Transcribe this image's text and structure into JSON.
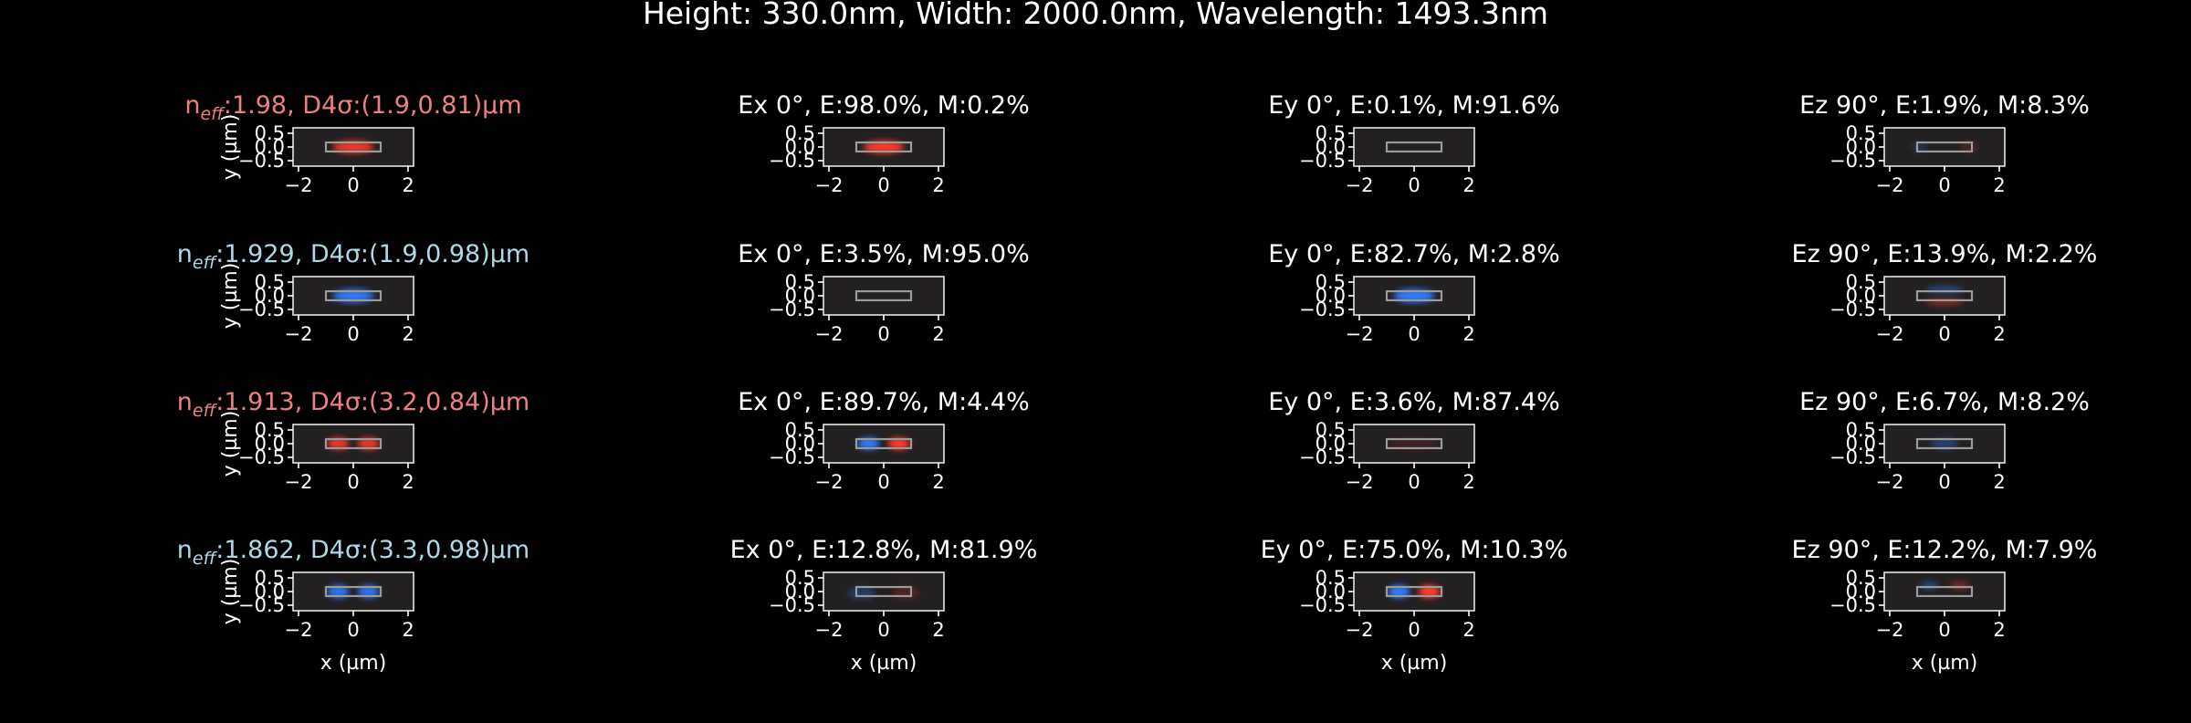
{
  "figure_title": "Height: 330.0nm, Width: 2000.0nm, Wavelength: 1493.3nm",
  "colors": {
    "background": "#000000",
    "panel_bg": "#232021",
    "te_label": "#f08080",
    "tm_label": "#add8e6",
    "field_pos": "#ff3a2a",
    "field_neg": "#2f7cff"
  },
  "chart_data": {
    "type": "heatmap",
    "title": "Height: 330.0nm, Width: 2000.0nm, Wavelength: 1493.3nm",
    "xlabel": "x (µm)",
    "ylabel": "y (µm)",
    "xlim": [
      -2.2,
      2.2
    ],
    "ylim": [
      -0.7,
      0.7
    ],
    "xticks": [
      "−2",
      "0",
      "2"
    ],
    "yticks": [
      "0.5",
      "0.0",
      "−0.5"
    ],
    "core": {
      "x": [
        -1.0,
        1.0
      ],
      "y": [
        -0.165,
        0.165
      ]
    },
    "rows": [
      {
        "mode_label": {
          "prefix": "n",
          "sub": "eff",
          "text": ":1.98, D4σ:(1.9,0.81)µm",
          "pol": "te"
        },
        "panels": [
          {
            "title": "",
            "blobs": [
              {
                "x": 0,
                "y": 0,
                "sx": 0.75,
                "sy": 0.22,
                "sign": 1,
                "amp": 0.95
              }
            ]
          },
          {
            "title": "Ex 0°, E:98.0%, M:0.2%",
            "blobs": [
              {
                "x": 0,
                "y": 0,
                "sx": 0.75,
                "sy": 0.22,
                "sign": 1,
                "amp": 1.0
              }
            ]
          },
          {
            "title": "Ey 0°, E:0.1%, M:91.6%",
            "blobs": []
          },
          {
            "title": "Ez 90°, E:1.9%, M:8.3%",
            "blobs": [
              {
                "x": -0.9,
                "y": 0,
                "sx": 0.3,
                "sy": 0.2,
                "sign": -1,
                "amp": 0.18
              },
              {
                "x": 0.9,
                "y": 0,
                "sx": 0.3,
                "sy": 0.2,
                "sign": 1,
                "amp": 0.18
              }
            ]
          }
        ]
      },
      {
        "mode_label": {
          "prefix": "n",
          "sub": "eff",
          "text": ":1.929, D4σ:(1.9,0.98)µm",
          "pol": "tm"
        },
        "panels": [
          {
            "title": "",
            "blobs": [
              {
                "x": 0,
                "y": 0,
                "sx": 0.75,
                "sy": 0.24,
                "sign": -1,
                "amp": 0.95
              }
            ]
          },
          {
            "title": "Ex 0°, E:3.5%, M:95.0%",
            "blobs": []
          },
          {
            "title": "Ey 0°, E:82.7%, M:2.8%",
            "blobs": [
              {
                "x": 0,
                "y": 0,
                "sx": 0.75,
                "sy": 0.24,
                "sign": -1,
                "amp": 1.0
              }
            ]
          },
          {
            "title": "Ez 90°, E:13.9%, M:2.2%",
            "blobs": [
              {
                "x": 0,
                "y": 0.22,
                "sx": 0.7,
                "sy": 0.13,
                "sign": -1,
                "amp": 0.45
              },
              {
                "x": 0,
                "y": -0.22,
                "sx": 0.7,
                "sy": 0.13,
                "sign": 1,
                "amp": 0.45
              }
            ]
          }
        ]
      },
      {
        "mode_label": {
          "prefix": "n",
          "sub": "eff",
          "text": ":1.913, D4σ:(3.2,0.84)µm",
          "pol": "te"
        },
        "panels": [
          {
            "title": "",
            "blobs": [
              {
                "x": -0.55,
                "y": 0,
                "sx": 0.4,
                "sy": 0.22,
                "sign": 1,
                "amp": 0.9
              },
              {
                "x": 0.55,
                "y": 0,
                "sx": 0.4,
                "sy": 0.22,
                "sign": 1,
                "amp": 0.9
              }
            ]
          },
          {
            "title": "Ex 0°, E:89.7%, M:4.4%",
            "blobs": [
              {
                "x": -0.55,
                "y": 0,
                "sx": 0.4,
                "sy": 0.22,
                "sign": -1,
                "amp": 1.0
              },
              {
                "x": 0.55,
                "y": 0,
                "sx": 0.4,
                "sy": 0.22,
                "sign": 1,
                "amp": 1.0
              }
            ]
          },
          {
            "title": "Ey 0°, E:3.6%, M:87.4%",
            "blobs": [
              {
                "x": 0,
                "y": 0,
                "sx": 0.9,
                "sy": 0.25,
                "sign": 1,
                "amp": 0.12
              }
            ]
          },
          {
            "title": "Ez 90°, E:6.7%, M:8.2%",
            "blobs": [
              {
                "x": 0,
                "y": 0,
                "sx": 0.5,
                "sy": 0.2,
                "sign": -1,
                "amp": 0.35
              }
            ]
          }
        ]
      },
      {
        "mode_label": {
          "prefix": "n",
          "sub": "eff",
          "text": ":1.862, D4σ:(3.3,0.98)µm",
          "pol": "tm"
        },
        "panels": [
          {
            "title": "",
            "blobs": [
              {
                "x": -0.55,
                "y": 0,
                "sx": 0.4,
                "sy": 0.24,
                "sign": -1,
                "amp": 0.9
              },
              {
                "x": 0.55,
                "y": 0,
                "sx": 0.4,
                "sy": 0.24,
                "sign": -1,
                "amp": 0.9
              }
            ]
          },
          {
            "title": "Ex 0°, E:12.8%, M:81.9%",
            "blobs": [
              {
                "x": -0.8,
                "y": -0.05,
                "sx": 0.5,
                "sy": 0.25,
                "sign": -1,
                "amp": 0.28
              },
              {
                "x": 0.8,
                "y": -0.05,
                "sx": 0.5,
                "sy": 0.25,
                "sign": 1,
                "amp": 0.2
              }
            ]
          },
          {
            "title": "Ey 0°, E:75.0%, M:10.3%",
            "blobs": [
              {
                "x": -0.55,
                "y": 0,
                "sx": 0.4,
                "sy": 0.24,
                "sign": -1,
                "amp": 1.0
              },
              {
                "x": 0.55,
                "y": 0,
                "sx": 0.4,
                "sy": 0.24,
                "sign": 1,
                "amp": 1.0
              }
            ]
          },
          {
            "title": "Ez 90°, E:12.2%, M:7.9%",
            "blobs": [
              {
                "x": -0.55,
                "y": 0.22,
                "sx": 0.35,
                "sy": 0.13,
                "sign": -1,
                "amp": 0.45
              },
              {
                "x": 0.55,
                "y": 0.22,
                "sx": 0.35,
                "sy": 0.13,
                "sign": 1,
                "amp": 0.45
              }
            ]
          }
        ]
      }
    ]
  }
}
